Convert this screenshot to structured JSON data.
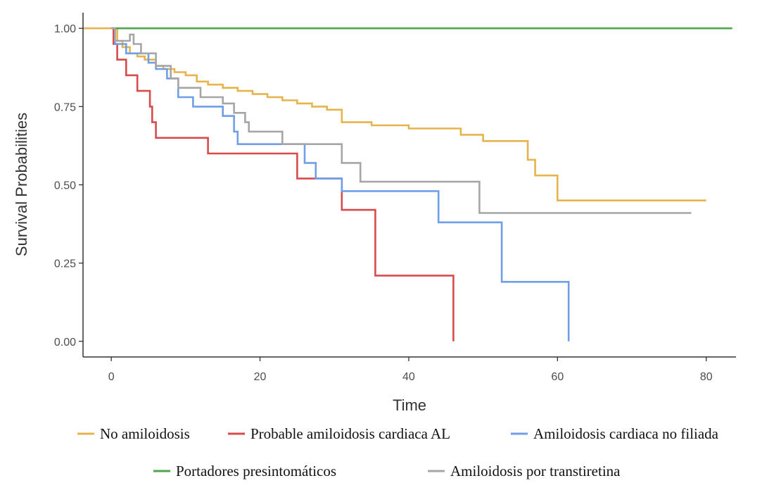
{
  "chart_data": {
    "type": "line",
    "title": "",
    "xlabel": "Time",
    "ylabel": "Survival Probabilities",
    "xlim": [
      -3.8,
      84
    ],
    "ylim": [
      -0.05,
      1.05
    ],
    "x_ticks": [
      0,
      20,
      40,
      60,
      80
    ],
    "x_tick_labels": [
      "0",
      "20",
      "40",
      "60",
      "80"
    ],
    "y_ticks": [
      0,
      0.25,
      0.5,
      0.75,
      1.0
    ],
    "y_tick_labels": [
      "0.00",
      "0.25",
      "0.50",
      "0.75",
      "1.00"
    ],
    "grid": false,
    "legend_position": "bottom",
    "step": true,
    "series": [
      {
        "name": "No amiloidosis",
        "color": "#E7B44C",
        "points": [
          [
            -3.8,
            1.0
          ],
          [
            0.4,
            1.0
          ],
          [
            0.8,
            0.96
          ],
          [
            1.5,
            0.94
          ],
          [
            2.5,
            0.92
          ],
          [
            3.5,
            0.91
          ],
          [
            4.5,
            0.9
          ],
          [
            6,
            0.88
          ],
          [
            7,
            0.87
          ],
          [
            8.5,
            0.86
          ],
          [
            10,
            0.85
          ],
          [
            11.5,
            0.83
          ],
          [
            13,
            0.82
          ],
          [
            15,
            0.81
          ],
          [
            17,
            0.8
          ],
          [
            19,
            0.79
          ],
          [
            21,
            0.78
          ],
          [
            23,
            0.77
          ],
          [
            25,
            0.76
          ],
          [
            27,
            0.75
          ],
          [
            29,
            0.74
          ],
          [
            31,
            0.7
          ],
          [
            35,
            0.69
          ],
          [
            40,
            0.68
          ],
          [
            47,
            0.66
          ],
          [
            50,
            0.64
          ],
          [
            56,
            0.58
          ],
          [
            57,
            0.53
          ],
          [
            60,
            0.45
          ],
          [
            80,
            0.45
          ]
        ]
      },
      {
        "name": "Probable amiloidosis cardiaca AL",
        "color": "#D84B4B",
        "points": [
          [
            0,
            1.0
          ],
          [
            0.3,
            0.95
          ],
          [
            0.8,
            0.9
          ],
          [
            2,
            0.85
          ],
          [
            3.5,
            0.8
          ],
          [
            5.2,
            0.75
          ],
          [
            5.5,
            0.7
          ],
          [
            6,
            0.65
          ],
          [
            13,
            0.6
          ],
          [
            25,
            0.52
          ],
          [
            31,
            0.42
          ],
          [
            35.5,
            0.21
          ],
          [
            46,
            0.0
          ]
        ]
      },
      {
        "name": "Amiloidosis cardiaca no filiada",
        "color": "#6F9FE8",
        "points": [
          [
            0,
            1.0
          ],
          [
            0.5,
            0.95
          ],
          [
            2,
            0.92
          ],
          [
            5,
            0.89
          ],
          [
            6,
            0.87
          ],
          [
            7.5,
            0.84
          ],
          [
            9,
            0.78
          ],
          [
            11,
            0.75
          ],
          [
            15,
            0.72
          ],
          [
            16.5,
            0.67
          ],
          [
            17,
            0.63
          ],
          [
            26,
            0.57
          ],
          [
            27.5,
            0.52
          ],
          [
            31,
            0.48
          ],
          [
            44,
            0.38
          ],
          [
            52.5,
            0.19
          ],
          [
            61.5,
            0.0
          ]
        ]
      },
      {
        "name": "Portadores presintomáticos",
        "color": "#4DA64D",
        "points": [
          [
            0,
            1.0
          ],
          [
            83.5,
            1.0
          ]
        ]
      },
      {
        "name": "Amiloidosis por transtiretina",
        "color": "#A6A6A6",
        "points": [
          [
            0,
            1.0
          ],
          [
            0.5,
            0.96
          ],
          [
            2.5,
            0.98
          ],
          [
            3,
            0.95
          ],
          [
            4,
            0.92
          ],
          [
            6,
            0.88
          ],
          [
            8,
            0.84
          ],
          [
            9,
            0.81
          ],
          [
            12,
            0.78
          ],
          [
            15,
            0.76
          ],
          [
            16.5,
            0.73
          ],
          [
            18,
            0.7
          ],
          [
            18.5,
            0.67
          ],
          [
            23,
            0.63
          ],
          [
            31,
            0.57
          ],
          [
            33.5,
            0.51
          ],
          [
            49.5,
            0.41
          ],
          [
            78,
            0.41
          ]
        ]
      }
    ]
  }
}
